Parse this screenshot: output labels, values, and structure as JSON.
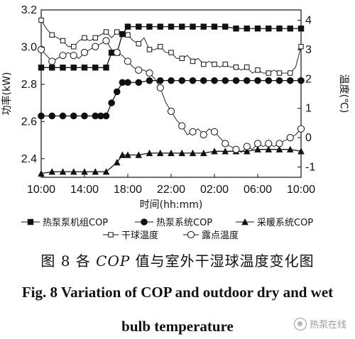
{
  "chart_data": {
    "type": "line",
    "title": "",
    "xlabel": "时间(hh:mm)",
    "ylabel_left": "功率(kW)",
    "ylabel_right": "温度(℃)",
    "x_ticks": [
      "10:00",
      "14:00",
      "18:00",
      "22:00",
      "02:00",
      "06:00",
      "10:00"
    ],
    "y_left_ticks": [
      2.4,
      2.6,
      2.8,
      3.0,
      3.2
    ],
    "y_right_ticks": [
      -1,
      0,
      1,
      2,
      3,
      4
    ],
    "x_range_hours": [
      0,
      24
    ],
    "ylim_left": [
      2.3,
      3.2
    ],
    "ylim_right": [
      -1.35,
      4.35
    ],
    "grid": false,
    "series": [
      {
        "name": "热泵泵机组COP",
        "axis": "left",
        "marker": "square",
        "points": [
          [
            0,
            2.89
          ],
          [
            1,
            2.89
          ],
          [
            2,
            2.89
          ],
          [
            3,
            2.89
          ],
          [
            4,
            2.89
          ],
          [
            5,
            2.89
          ],
          [
            6,
            2.89
          ],
          [
            6.5,
            2.97
          ],
          [
            7,
            2.97
          ],
          [
            7.5,
            3.07
          ],
          [
            8,
            3.11
          ],
          [
            9,
            3.11
          ],
          [
            10,
            3.11
          ],
          [
            11,
            3.11
          ],
          [
            12,
            3.11
          ],
          [
            13,
            3.11
          ],
          [
            14,
            3.11
          ],
          [
            15,
            3.11
          ],
          [
            16,
            3.11
          ],
          [
            17,
            3.11
          ],
          [
            18,
            3.1
          ],
          [
            19,
            3.1
          ],
          [
            20,
            3.1
          ],
          [
            21,
            3.1
          ],
          [
            22,
            3.1
          ],
          [
            23,
            3.1
          ],
          [
            24,
            3.1
          ]
        ]
      },
      {
        "name": "热泵系统COP",
        "axis": "left",
        "marker": "circle",
        "points": [
          [
            0,
            2.63
          ],
          [
            1,
            2.63
          ],
          [
            2,
            2.63
          ],
          [
            3,
            2.63
          ],
          [
            4,
            2.63
          ],
          [
            5,
            2.63
          ],
          [
            5.5,
            2.63
          ],
          [
            6,
            2.63
          ],
          [
            6.5,
            2.7
          ],
          [
            7,
            2.76
          ],
          [
            7.5,
            2.81
          ],
          [
            8,
            2.81
          ],
          [
            9,
            2.81
          ],
          [
            10,
            2.82
          ],
          [
            11,
            2.82
          ],
          [
            12,
            2.82
          ],
          [
            13,
            2.82
          ],
          [
            14,
            2.82
          ],
          [
            15,
            2.82
          ],
          [
            16,
            2.82
          ],
          [
            17,
            2.82
          ],
          [
            18,
            2.82
          ],
          [
            19,
            2.82
          ],
          [
            20,
            2.82
          ],
          [
            21,
            2.82
          ],
          [
            22,
            2.82
          ],
          [
            23,
            2.82
          ],
          [
            24,
            2.82
          ]
        ]
      },
      {
        "name": "采暖系统COP",
        "axis": "left",
        "marker": "triangle",
        "points": [
          [
            0,
            2.32
          ],
          [
            1,
            2.33
          ],
          [
            2,
            2.33
          ],
          [
            3,
            2.33
          ],
          [
            4,
            2.33
          ],
          [
            5,
            2.33
          ],
          [
            6,
            2.33
          ],
          [
            7,
            2.38
          ],
          [
            7.5,
            2.42
          ],
          [
            8,
            2.42
          ],
          [
            9,
            2.42
          ],
          [
            10,
            2.43
          ],
          [
            11,
            2.43
          ],
          [
            12,
            2.43
          ],
          [
            13,
            2.43
          ],
          [
            14,
            2.43
          ],
          [
            15,
            2.43
          ],
          [
            16,
            2.44
          ],
          [
            17,
            2.44
          ],
          [
            18,
            2.44
          ],
          [
            19,
            2.44
          ],
          [
            20,
            2.45
          ],
          [
            21,
            2.45
          ],
          [
            22,
            2.45
          ],
          [
            23,
            2.45
          ],
          [
            24,
            2.44
          ]
        ]
      },
      {
        "name": "干球温度",
        "axis": "right",
        "marker": "open-square",
        "points": [
          [
            0,
            4.0
          ],
          [
            0.5,
            3.7
          ],
          [
            1,
            3.5
          ],
          [
            1.5,
            3.4
          ],
          [
            2,
            3.3
          ],
          [
            2.5,
            3.1
          ],
          [
            3,
            3.1
          ],
          [
            3.5,
            3.3
          ],
          [
            4,
            3.4
          ],
          [
            4.5,
            3.3
          ],
          [
            5,
            3.4
          ],
          [
            5.5,
            3.5
          ],
          [
            6,
            3.6
          ],
          [
            6.5,
            3.4
          ],
          [
            7,
            3.6
          ],
          [
            7.5,
            3.5
          ],
          [
            8,
            3.5
          ],
          [
            8.5,
            3.3
          ],
          [
            9,
            3.2
          ],
          [
            9.5,
            3.4
          ],
          [
            10,
            3.0
          ],
          [
            10.5,
            3.0
          ],
          [
            11,
            3.1
          ],
          [
            11.5,
            2.9
          ],
          [
            12,
            2.9
          ],
          [
            12.5,
            2.7
          ],
          [
            13,
            2.7
          ],
          [
            13.5,
            2.8
          ],
          [
            14,
            2.6
          ],
          [
            14.5,
            2.7
          ],
          [
            15,
            2.5
          ],
          [
            15.5,
            2.6
          ],
          [
            16,
            2.5
          ],
          [
            16.5,
            2.4
          ],
          [
            17,
            2.5
          ],
          [
            17.5,
            2.4
          ],
          [
            18,
            2.4
          ],
          [
            18.5,
            2.3
          ],
          [
            19,
            2.4
          ],
          [
            19.5,
            2.2
          ],
          [
            20,
            2.3
          ],
          [
            20.5,
            2.2
          ],
          [
            21,
            2.2
          ],
          [
            21.5,
            2.3
          ],
          [
            22,
            2.2
          ],
          [
            22.5,
            2.2
          ],
          [
            23,
            2.2
          ],
          [
            23.5,
            2.4
          ],
          [
            24,
            3.1
          ]
        ]
      },
      {
        "name": "露点温度",
        "axis": "right",
        "marker": "open-circle",
        "points": [
          [
            0,
            3.0
          ],
          [
            0.5,
            2.8
          ],
          [
            1,
            2.6
          ],
          [
            1.5,
            2.7
          ],
          [
            2,
            2.8
          ],
          [
            2.5,
            2.9
          ],
          [
            3,
            2.8
          ],
          [
            3.5,
            2.7
          ],
          [
            4,
            2.9
          ],
          [
            4.5,
            3.0
          ],
          [
            5,
            3.1
          ],
          [
            5.5,
            3.2
          ],
          [
            6,
            3.3
          ],
          [
            6.5,
            3.0
          ],
          [
            7,
            2.9
          ],
          [
            7.5,
            2.8
          ],
          [
            8,
            2.6
          ],
          [
            8.5,
            2.4
          ],
          [
            9,
            2.3
          ],
          [
            9.5,
            2.3
          ],
          [
            10,
            2.2
          ],
          [
            10.5,
            2.0
          ],
          [
            11,
            1.7
          ],
          [
            11.5,
            1.2
          ],
          [
            12,
            0.9
          ],
          [
            12.5,
            0.6
          ],
          [
            13,
            0.4
          ],
          [
            13.5,
            0.1
          ],
          [
            14,
            0.2
          ],
          [
            14.5,
            0.3
          ],
          [
            15,
            0.1
          ],
          [
            15.5,
            0.3
          ],
          [
            16,
            0.2
          ],
          [
            16.5,
            0.0
          ],
          [
            17,
            -0.2
          ],
          [
            17.5,
            -0.3
          ],
          [
            18,
            -0.4
          ],
          [
            18.5,
            -0.5
          ],
          [
            19,
            -0.3
          ],
          [
            19.5,
            -0.4
          ],
          [
            20,
            -0.2
          ],
          [
            20.5,
            -0.3
          ],
          [
            21,
            -0.2
          ],
          [
            21.5,
            -0.3
          ],
          [
            22,
            -0.2
          ],
          [
            22.5,
            -0.1
          ],
          [
            23,
            0.0
          ],
          [
            23.5,
            0.1
          ],
          [
            24,
            0.3
          ]
        ]
      }
    ],
    "legend": {
      "placement": "bottom",
      "items": [
        "热泵泵机组COP",
        "热泵系统COP",
        "采暖系统COP",
        "干球温度",
        "露点温度"
      ]
    }
  },
  "caption": {
    "cn_prefix": "图 8  各 ",
    "cn_cop": "COP",
    "cn_suffix": " 值与室外干湿球温度变化图",
    "en_line1": "Fig. 8 Variation of COP and outdoor dry and wet",
    "en_line2": "bulb temperature"
  },
  "watermark": {
    "text": "热泵在线",
    "icon": "wechat-logo-icon"
  },
  "colors": {
    "ink": "#111111",
    "background": "#ffffff",
    "watermark": "#9a9a9a"
  }
}
